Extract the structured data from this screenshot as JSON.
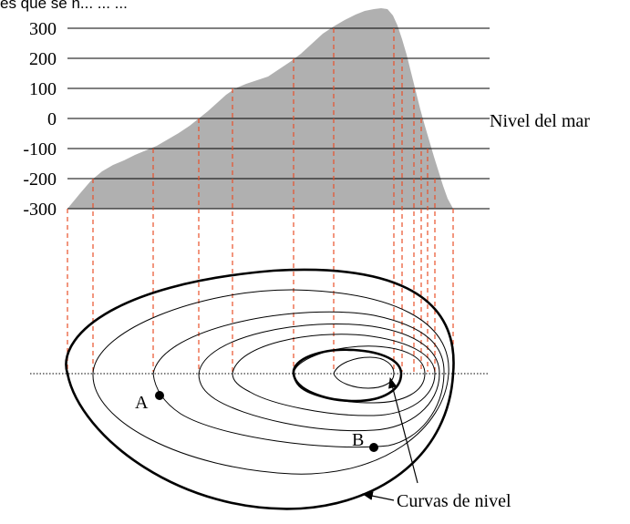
{
  "header_text": "es que se n... ... ...",
  "chart_data": {
    "type": "area",
    "title": "",
    "xlabel": "",
    "ylabel": "",
    "y_ticks": [
      "300",
      "200",
      "100",
      "0",
      "-100",
      "-200",
      "-300"
    ],
    "y_values": [
      300,
      200,
      100,
      0,
      -100,
      -200,
      -300
    ],
    "ylim": [
      -300,
      340
    ],
    "reference_label": "Nivel del mar",
    "reference_value": 0,
    "profile_color": "#b0b0b0"
  },
  "diagram": {
    "contour_caption": "Curvas de nivel",
    "point_a_label": "A",
    "point_b_label": "B",
    "projection_color": "#e8502a"
  }
}
